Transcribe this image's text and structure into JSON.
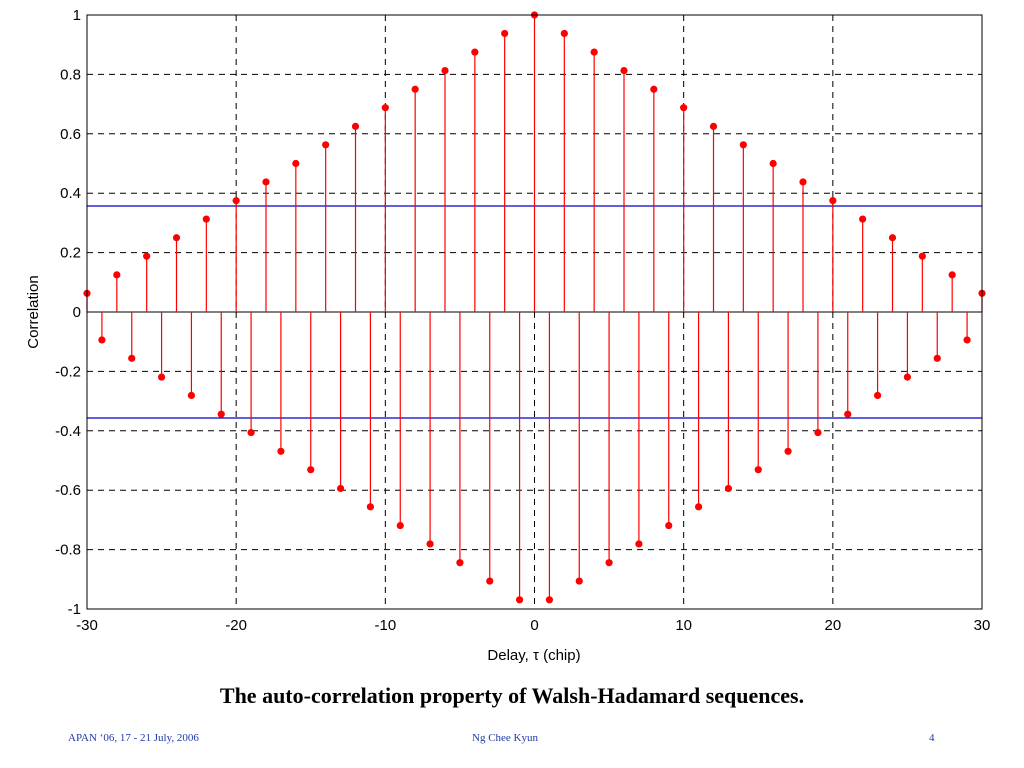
{
  "chart_data": {
    "type": "stem",
    "title": "",
    "xlabel": "Delay, τ (chip)",
    "ylabel": "Correlation",
    "xlim": [
      -30,
      30
    ],
    "ylim": [
      -1,
      1
    ],
    "xticks": [
      -30,
      -20,
      -10,
      0,
      10,
      20,
      30
    ],
    "yticks": [
      -1,
      -0.8,
      -0.6,
      -0.4,
      -0.2,
      0,
      0.2,
      0.4,
      0.6,
      0.8,
      1
    ],
    "ytick_labels": [
      "-1",
      "-0.8",
      "-0.6",
      "-0.4",
      "-0.2",
      "0",
      "0.2",
      "0.4",
      "0.6",
      "0.8",
      "1"
    ],
    "grid": true,
    "stem_color": "#ff0000",
    "threshold_color": "#0000cc",
    "thresholds": [
      0.357,
      -0.357
    ],
    "x": [
      -30,
      -29,
      -28,
      -27,
      -26,
      -25,
      -24,
      -23,
      -22,
      -21,
      -20,
      -19,
      -18,
      -17,
      -16,
      -15,
      -14,
      -13,
      -12,
      -11,
      -10,
      -9,
      -8,
      -7,
      -6,
      -5,
      -4,
      -3,
      -2,
      -1,
      0,
      1,
      2,
      3,
      4,
      5,
      6,
      7,
      8,
      9,
      10,
      11,
      12,
      13,
      14,
      15,
      16,
      17,
      18,
      19,
      20,
      21,
      22,
      23,
      24,
      25,
      26,
      27,
      28,
      29,
      30
    ],
    "y": [
      0.063,
      -0.094,
      0.125,
      -0.156,
      0.188,
      -0.219,
      0.25,
      -0.281,
      0.313,
      -0.344,
      0.375,
      -0.406,
      0.438,
      -0.469,
      0.5,
      -0.531,
      0.563,
      -0.594,
      0.625,
      -0.656,
      0.688,
      -0.719,
      0.75,
      -0.781,
      0.813,
      -0.844,
      0.875,
      -0.906,
      0.938,
      -0.969,
      1,
      -0.969,
      0.938,
      -0.906,
      0.875,
      -0.844,
      0.813,
      -0.781,
      0.75,
      -0.719,
      0.688,
      -0.656,
      0.625,
      -0.594,
      0.563,
      -0.531,
      0.5,
      -0.469,
      0.438,
      -0.406,
      0.375,
      -0.344,
      0.313,
      -0.281,
      0.25,
      -0.219,
      0.188,
      -0.156,
      0.125,
      -0.094,
      0.063
    ]
  },
  "caption": "The auto-correlation property of Walsh-Hadamard sequences.",
  "footer": {
    "left": "APAN ‘06, 17 - 21 July, 2006",
    "center": "Ng Chee Kyun",
    "right": "4"
  }
}
